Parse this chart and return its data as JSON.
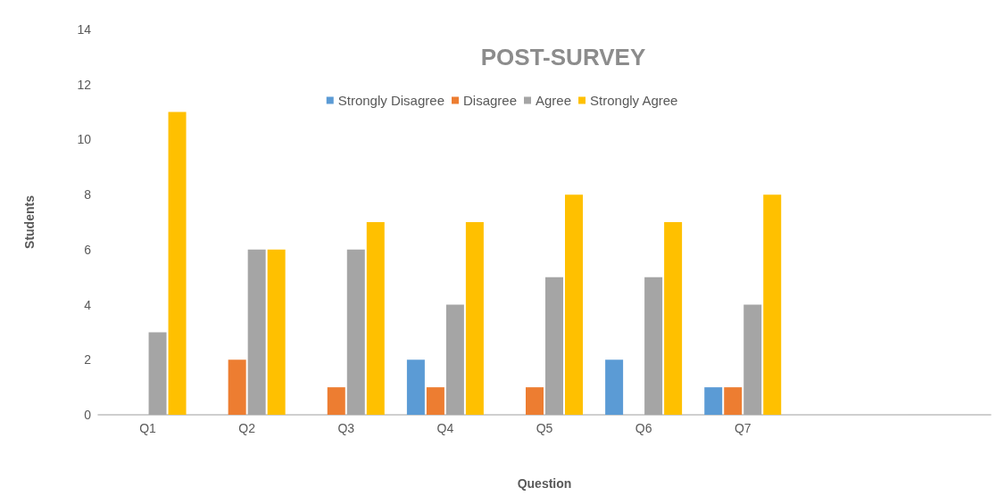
{
  "chart_data": {
    "type": "bar",
    "title": "POST-SURVEY",
    "xlabel": "Question",
    "ylabel": "Students",
    "categories": [
      "Q1",
      "Q2",
      "Q3",
      "Q4",
      "Q5",
      "Q6",
      "Q7",
      null,
      null
    ],
    "series": [
      {
        "name": "Strongly Disagree",
        "color": "#5b9bd5",
        "values": [
          0,
          0,
          0,
          2,
          0,
          2,
          1,
          null,
          null
        ]
      },
      {
        "name": "Disagree",
        "color": "#ed7d31",
        "values": [
          0,
          2,
          1,
          1,
          1,
          0,
          1,
          null,
          null
        ]
      },
      {
        "name": "Agree",
        "color": "#a5a5a5",
        "values": [
          3,
          6,
          6,
          4,
          5,
          5,
          4,
          null,
          null
        ]
      },
      {
        "name": "Strongly Agree",
        "color": "#ffc000",
        "values": [
          11,
          6,
          7,
          7,
          8,
          7,
          8,
          null,
          null
        ]
      }
    ],
    "ylim": [
      0,
      14
    ],
    "yticks": [
      0,
      2,
      4,
      6,
      8,
      10,
      12,
      14
    ],
    "grid": false,
    "legend": "top"
  }
}
